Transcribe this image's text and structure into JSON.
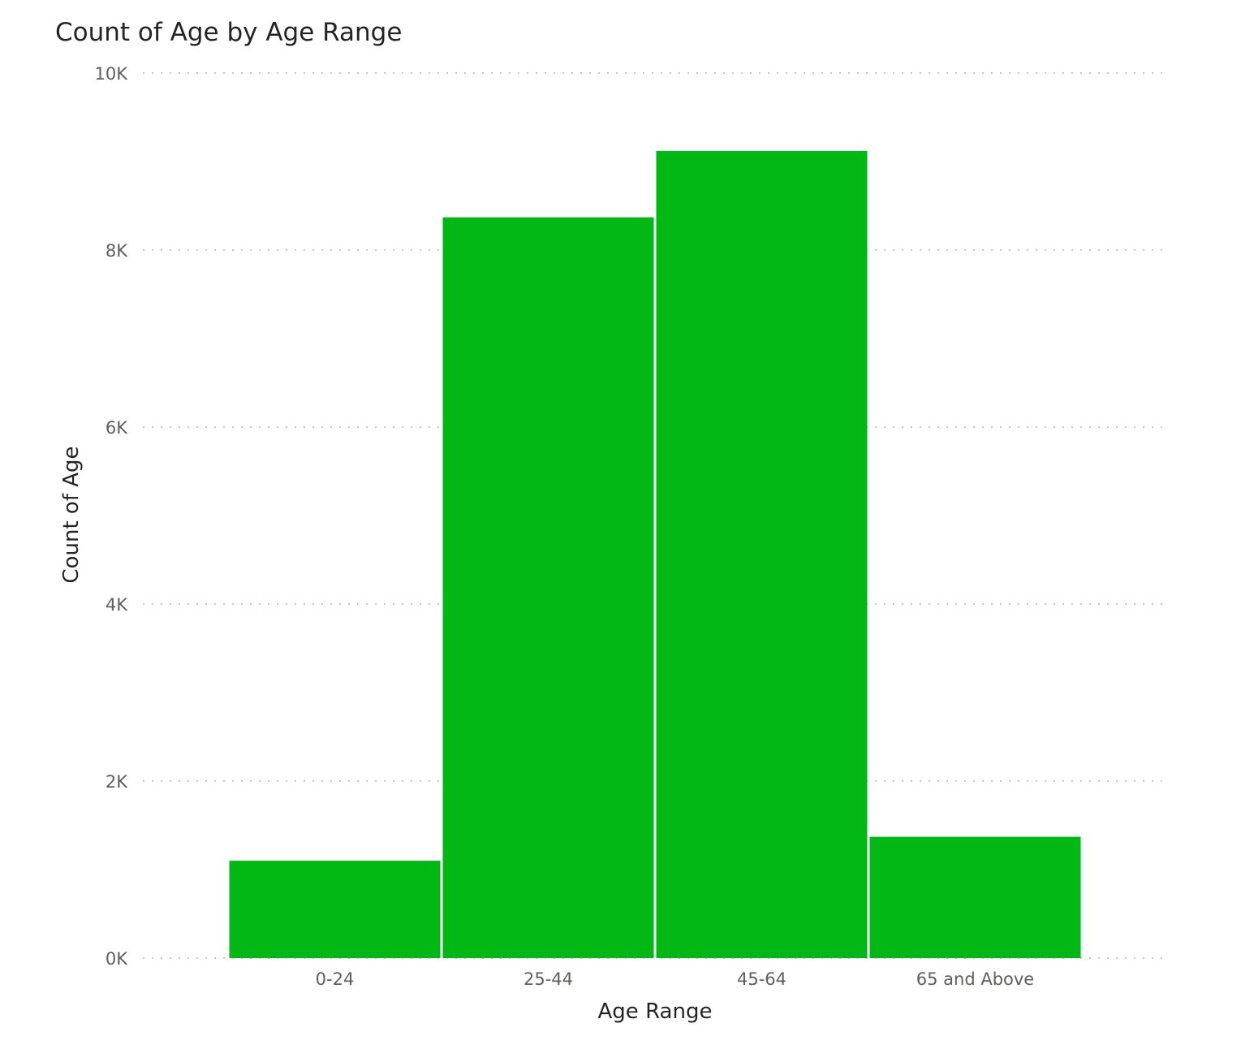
{
  "chart_data": {
    "type": "bar",
    "title": "Count of Age by Age Range",
    "xlabel": "Age Range",
    "ylabel": "Count of Age",
    "categories": [
      "0-24",
      "25-44",
      "45-64",
      "65 and Above"
    ],
    "values": [
      1100,
      8370,
      9120,
      1370
    ],
    "ylim": [
      0,
      10000
    ],
    "yticks": [
      {
        "value": 0,
        "label": "0K"
      },
      {
        "value": 2000,
        "label": "2K"
      },
      {
        "value": 4000,
        "label": "4K"
      },
      {
        "value": 6000,
        "label": "6K"
      },
      {
        "value": 8000,
        "label": "8K"
      },
      {
        "value": 10000,
        "label": "10K"
      }
    ],
    "grid": true,
    "bar_color": "#01B815",
    "gridline_color": "#C8C6C4"
  }
}
